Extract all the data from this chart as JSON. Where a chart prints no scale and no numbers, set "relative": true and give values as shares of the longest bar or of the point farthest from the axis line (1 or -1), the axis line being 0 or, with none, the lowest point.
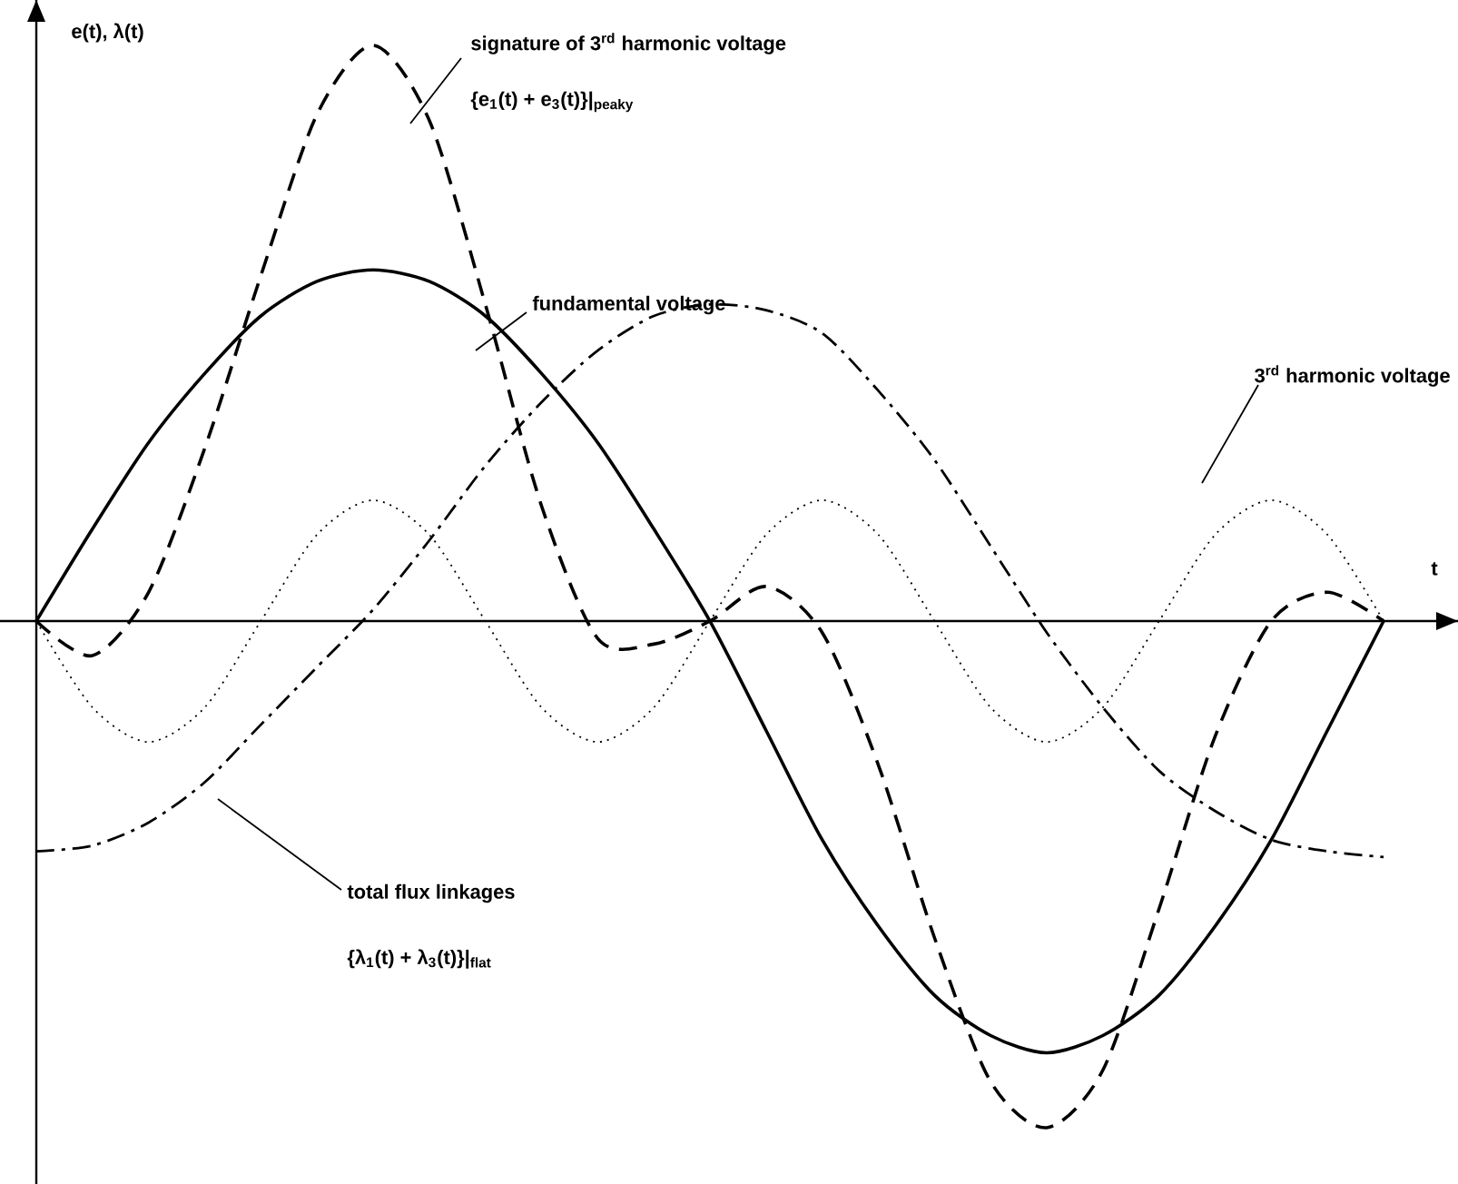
{
  "chart_data": {
    "type": "line",
    "relative": true,
    "xlabel": "t",
    "ylabel": "e(t),  λ(t)",
    "categories": [
      null,
      null,
      null,
      null,
      null,
      null,
      null,
      null,
      null,
      null,
      null,
      null,
      null,
      null,
      null,
      null,
      null,
      null,
      null,
      null,
      null,
      null,
      null,
      null,
      null
    ],
    "series": [
      {
        "color": "#000000",
        "line_style": "dashed",
        "values": [
          0,
          -0.06,
          0.05,
          0.3,
          0.6,
          0.88,
          1.0,
          0.87,
          0.55,
          0.2,
          -0.03,
          -0.04,
          0,
          0.06,
          -0.02,
          -0.25,
          -0.55,
          -0.8,
          -0.88,
          -0.78,
          -0.5,
          -0.2,
          0.0,
          0.05,
          0
        ]
      },
      {
        "color": "#000000",
        "line_style": "solid",
        "values": [
          0,
          0.16,
          0.31,
          0.43,
          0.53,
          0.59,
          0.61,
          0.59,
          0.53,
          0.43,
          0.31,
          0.16,
          0,
          -0.19,
          -0.38,
          -0.53,
          -0.65,
          -0.72,
          -0.75,
          -0.72,
          -0.65,
          -0.53,
          -0.38,
          -0.19,
          0
        ]
      },
      {
        "color": "#000000",
        "line_style": "dotted",
        "values": [
          0,
          -0.15,
          -0.21,
          -0.15,
          0,
          0.15,
          0.21,
          0.15,
          0,
          -0.15,
          -0.21,
          -0.15,
          0,
          0.15,
          0.21,
          0.15,
          0,
          -0.15,
          -0.21,
          -0.15,
          0,
          0.15,
          0.21,
          0.15,
          0
        ]
      },
      {
        "color": "#000000",
        "line_style": "dashdot",
        "values": [
          -0.4,
          -0.39,
          -0.35,
          -0.28,
          -0.18,
          -0.08,
          0.02,
          0.14,
          0.27,
          0.38,
          0.47,
          0.53,
          0.55,
          0.54,
          0.5,
          0.4,
          0.28,
          0.13,
          -0.02,
          -0.15,
          -0.26,
          -0.33,
          -0.38,
          -0.4,
          -0.41
        ]
      }
    ],
    "annotations": [
      "signature of 3$^{rd}$ harmonic voltage",
      "{e$_{1}$(t) + e$_{3}$(t)}|$_{peaky}$",
      "fundamental voltage",
      "3$^{rd}$ harmonic voltage",
      "total flux linkages",
      "{λ$_{1}$(t) + λ$_{3}$(t)}|$_{flat}$"
    ]
  }
}
